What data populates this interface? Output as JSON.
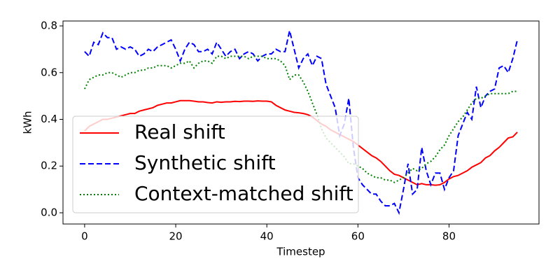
{
  "chart_data": {
    "type": "line",
    "xlabel": "Timestep",
    "ylabel": "kWh",
    "x": [
      0,
      1,
      2,
      3,
      4,
      5,
      6,
      7,
      8,
      9,
      10,
      11,
      12,
      13,
      14,
      15,
      16,
      17,
      18,
      19,
      20,
      21,
      22,
      23,
      24,
      25,
      26,
      27,
      28,
      29,
      30,
      31,
      32,
      33,
      34,
      35,
      36,
      37,
      38,
      39,
      40,
      41,
      42,
      43,
      44,
      45,
      46,
      47,
      48,
      49,
      50,
      51,
      52,
      53,
      54,
      55,
      56,
      57,
      58,
      59,
      60,
      61,
      62,
      63,
      64,
      65,
      66,
      67,
      68,
      69,
      70,
      71,
      72,
      73,
      74,
      75,
      76,
      77,
      78,
      79,
      80,
      81,
      82,
      83,
      84,
      85,
      86,
      87,
      88,
      89,
      90,
      91,
      92,
      93,
      94,
      95
    ],
    "series": [
      {
        "name": "Real shift",
        "color": "#ff0000",
        "style": "solid",
        "values": [
          0.35,
          0.37,
          0.38,
          0.39,
          0.4,
          0.4,
          0.405,
          0.41,
          0.415,
          0.42,
          0.425,
          0.425,
          0.435,
          0.44,
          0.445,
          0.45,
          0.46,
          0.465,
          0.47,
          0.47,
          0.475,
          0.48,
          0.48,
          0.48,
          0.478,
          0.475,
          0.475,
          0.472,
          0.47,
          0.475,
          0.473,
          0.475,
          0.475,
          0.477,
          0.476,
          0.478,
          0.478,
          0.477,
          0.479,
          0.478,
          0.478,
          0.475,
          0.46,
          0.45,
          0.44,
          0.435,
          0.43,
          0.428,
          0.425,
          0.42,
          0.41,
          0.395,
          0.38,
          0.37,
          0.355,
          0.345,
          0.335,
          0.325,
          0.315,
          0.305,
          0.29,
          0.275,
          0.26,
          0.245,
          0.235,
          0.22,
          0.2,
          0.18,
          0.165,
          0.16,
          0.15,
          0.14,
          0.13,
          0.12,
          0.125,
          0.12,
          0.12,
          0.118,
          0.12,
          0.13,
          0.145,
          0.155,
          0.16,
          0.17,
          0.18,
          0.195,
          0.205,
          0.215,
          0.235,
          0.245,
          0.265,
          0.28,
          0.3,
          0.32,
          0.325,
          0.345
        ]
      },
      {
        "name": "Synthetic shift",
        "color": "#0000ff",
        "style": "dashed",
        "values": [
          0.69,
          0.67,
          0.73,
          0.72,
          0.77,
          0.75,
          0.75,
          0.7,
          0.71,
          0.7,
          0.71,
          0.7,
          0.67,
          0.68,
          0.7,
          0.69,
          0.71,
          0.72,
          0.73,
          0.74,
          0.7,
          0.65,
          0.7,
          0.73,
          0.72,
          0.69,
          0.69,
          0.7,
          0.68,
          0.73,
          0.7,
          0.67,
          0.69,
          0.7,
          0.66,
          0.68,
          0.69,
          0.68,
          0.65,
          0.67,
          0.68,
          0.68,
          0.7,
          0.69,
          0.69,
          0.78,
          0.7,
          0.62,
          0.66,
          0.68,
          0.63,
          0.67,
          0.66,
          0.55,
          0.5,
          0.45,
          0.33,
          0.38,
          0.49,
          0.28,
          0.15,
          0.12,
          0.1,
          0.08,
          0.08,
          0.05,
          0.03,
          0.03,
          0.04,
          0.0,
          0.1,
          0.21,
          0.08,
          0.1,
          0.28,
          0.18,
          0.12,
          0.17,
          0.17,
          0.1,
          0.15,
          0.18,
          0.33,
          0.38,
          0.43,
          0.4,
          0.54,
          0.45,
          0.5,
          0.52,
          0.53,
          0.62,
          0.63,
          0.6,
          0.66,
          0.74
        ]
      },
      {
        "name": "Context-matched shift",
        "color": "#008000",
        "style": "dotted",
        "values": [
          0.53,
          0.57,
          0.58,
          0.59,
          0.59,
          0.6,
          0.6,
          0.59,
          0.58,
          0.59,
          0.6,
          0.6,
          0.61,
          0.61,
          0.62,
          0.62,
          0.63,
          0.63,
          0.63,
          0.62,
          0.63,
          0.64,
          0.64,
          0.65,
          0.62,
          0.64,
          0.65,
          0.65,
          0.64,
          0.67,
          0.67,
          0.66,
          0.67,
          0.67,
          0.67,
          0.67,
          0.66,
          0.67,
          0.67,
          0.67,
          0.66,
          0.66,
          0.66,
          0.65,
          0.63,
          0.57,
          0.59,
          0.59,
          0.56,
          0.52,
          0.47,
          0.42,
          0.36,
          0.32,
          0.3,
          0.28,
          0.26,
          0.24,
          0.21,
          0.21,
          0.2,
          0.19,
          0.17,
          0.16,
          0.15,
          0.15,
          0.14,
          0.14,
          0.13,
          0.14,
          0.15,
          0.17,
          0.19,
          0.18,
          0.19,
          0.21,
          0.22,
          0.24,
          0.27,
          0.29,
          0.33,
          0.36,
          0.39,
          0.41,
          0.44,
          0.47,
          0.49,
          0.49,
          0.5,
          0.51,
          0.51,
          0.51,
          0.51,
          0.51,
          0.52,
          0.52
        ]
      }
    ],
    "xlim": [
      -4.75,
      99.75
    ],
    "xticks": [
      0,
      20,
      40,
      60,
      80
    ],
    "ylim": [
      -0.048,
      0.821
    ],
    "yticks": [
      {
        "value": 0,
        "label": "0.0"
      },
      0.2,
      0.4,
      0.6,
      0.8
    ],
    "grid": false,
    "legend": "lower left"
  }
}
